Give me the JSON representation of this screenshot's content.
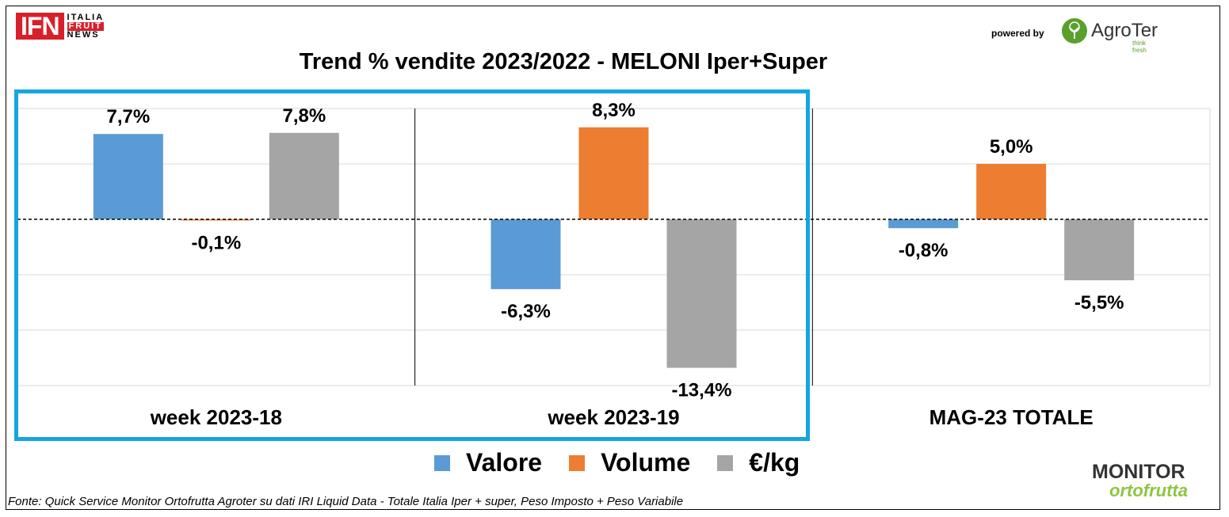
{
  "header": {
    "ifn_logo": {
      "mark": "IFN",
      "words": [
        "ITALIA",
        "FRUIT",
        "NEWS"
      ]
    },
    "powered_by": "powered by",
    "agroter_logo": {
      "name": "AgroTer",
      "tagline": "think fresh"
    }
  },
  "footer": {
    "source": "Fonte: Quick Service Monitor Ortofrutta Agroter su dati IRI Liquid Data - Totale Italia Iper + super, Peso Imposto + Peso Variabile",
    "monitor_logo": {
      "line1": "MONITOR",
      "line2": "ortofrutta"
    }
  },
  "colors": {
    "valore": "#5b9bd5",
    "volume": "#ed7d31",
    "eurkg": "#a5a5a5",
    "highlight": "#14a6e0"
  },
  "chart_data": {
    "type": "bar",
    "title": "Trend % vendite 2023/2022 - MELONI Iper+Super",
    "categories": [
      "week 2023-18",
      "week 2023-19",
      "MAG-23 TOTALE"
    ],
    "series": [
      {
        "name": "Valore",
        "values": [
          7.7,
          -6.3,
          -0.8
        ],
        "labels": [
          "7,7%",
          "-6,3%",
          "-0,8%"
        ]
      },
      {
        "name": "Volume",
        "values": [
          -0.1,
          8.3,
          5.0
        ],
        "labels": [
          "-0,1%",
          "8,3%",
          "5,0%"
        ]
      },
      {
        "name": "€/kg",
        "values": [
          7.8,
          -13.4,
          -5.5
        ],
        "labels": [
          "7,8%",
          "-13,4%",
          "-5,5%"
        ]
      }
    ],
    "ylim": [
      -15,
      10
    ],
    "grid": true,
    "legend": "bottom",
    "highlighted_categories": [
      "week 2023-18",
      "week 2023-19"
    ]
  }
}
